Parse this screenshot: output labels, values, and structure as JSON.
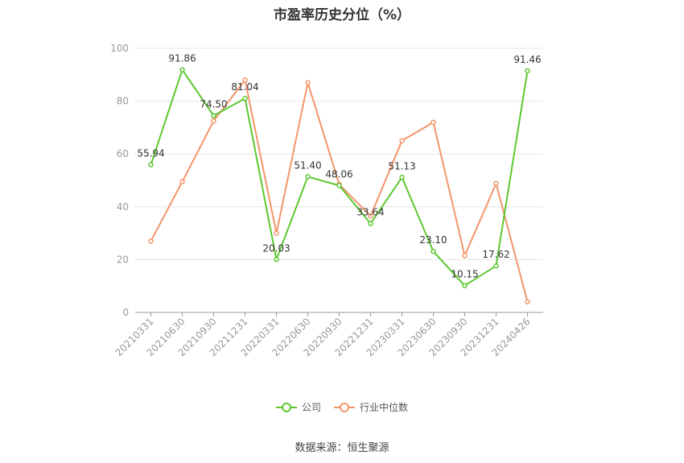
{
  "chart_data": {
    "type": "line",
    "title": "市盈率历史分位（%）",
    "xlabel": "",
    "ylabel": "",
    "ylim": [
      0,
      100
    ],
    "yticks": [
      0,
      20,
      40,
      60,
      80,
      100
    ],
    "categories": [
      "20210331",
      "20210630",
      "20210930",
      "20211231",
      "20220331",
      "20220630",
      "20220930",
      "20221231",
      "20230331",
      "20230630",
      "20230930",
      "20231231",
      "20240426"
    ],
    "series": [
      {
        "name": "公司",
        "color": "#5cc830",
        "labeled": true,
        "values": [
          55.94,
          91.86,
          74.5,
          81.04,
          20.03,
          51.4,
          48.06,
          33.64,
          51.13,
          23.1,
          10.15,
          17.62,
          91.46
        ]
      },
      {
        "name": "行业中位数",
        "color": "#f4956a",
        "labeled": false,
        "values": [
          27,
          49.5,
          72.5,
          88,
          30,
          87,
          48.5,
          36.5,
          65,
          72,
          21.5,
          48.8,
          4
        ]
      }
    ],
    "grid": true,
    "legend": "bottom-center"
  },
  "source": "数据来源：恒生聚源"
}
